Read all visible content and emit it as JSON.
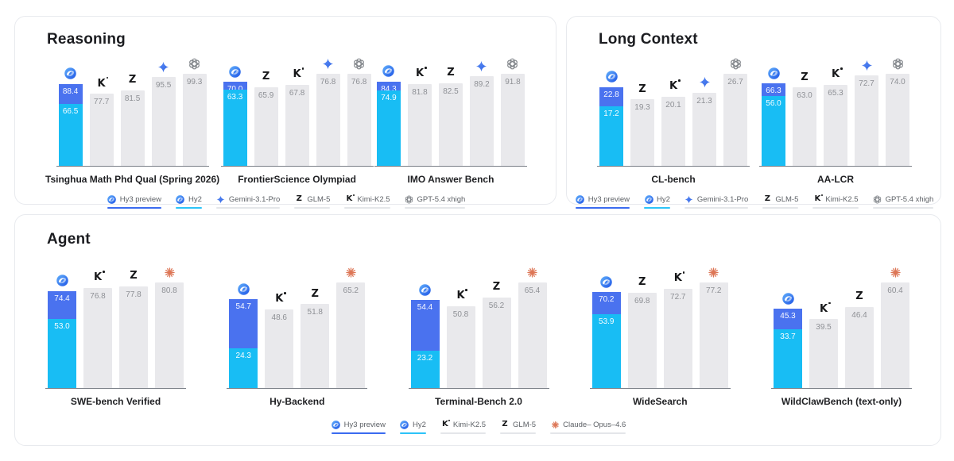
{
  "ui": {
    "models": {
      "hy3": {
        "label": "Hy3 preview",
        "icon": "hunyuan-logo"
      },
      "hy2": {
        "label": "Hy2",
        "icon": "hunyuan-logo"
      },
      "gemini": {
        "label": "Gemini-3.1-Pro",
        "icon": "gemini-star"
      },
      "glm": {
        "label": "GLM-5",
        "icon": "glm-z"
      },
      "kimi": {
        "label": "Kimi-K2.5",
        "icon": "kimi-k"
      },
      "gpt": {
        "label": "GPT-5.4 xhigh",
        "icon": "openai-flower"
      },
      "claude": {
        "label": "Claude– Opus–4.6",
        "icon": "claude-asterisk"
      }
    },
    "colors": {
      "hy3_blue": "#4a72ef",
      "hy2_cyan": "#18bdf4",
      "bar_gray": "#e9e9ec",
      "value_gray_text": "#8e9095",
      "gemini_blue": "#4b7df2",
      "openai_gray": "#7e8287",
      "claude_orange": "#dd7757",
      "underline_hy3": "#3a6bf0",
      "underline_hy2": "#2cc3f8",
      "underline_gray": "#e4e6e9",
      "baseline": "#7a7f87"
    },
    "panels": [
      {
        "title": "Reasoning",
        "charts": [
          0,
          1,
          2
        ],
        "legend": [
          "hy3",
          "hy2",
          "gemini",
          "glm",
          "kimi",
          "gpt"
        ]
      },
      {
        "title": "Long Context",
        "charts": [
          3,
          4
        ],
        "legend": [
          "hy3",
          "hy2",
          "gemini",
          "glm",
          "kimi",
          "gpt"
        ]
      },
      {
        "title": "Agent",
        "charts": [
          5,
          6,
          7,
          8,
          9
        ],
        "legend": [
          "hy3",
          "hy2",
          "kimi",
          "glm",
          "claude"
        ]
      }
    ]
  },
  "chart_data": [
    {
      "type": "bar",
      "panel": "Reasoning",
      "title": "Tsinghua Math Phd Qual (Spring 2026)",
      "bars": [
        {
          "model": "hy",
          "hy3": 88.4,
          "hy3_label": "88.4",
          "hy2": 66.5,
          "hy2_label": "66.5"
        },
        {
          "model": "kimi",
          "value": 77.7,
          "label": "77.7"
        },
        {
          "model": "glm",
          "value": 81.5,
          "label": "81.5"
        },
        {
          "model": "gemini",
          "value": 95.5,
          "label": "95.5"
        },
        {
          "model": "gpt",
          "value": 99.3,
          "label": "99.3"
        }
      ]
    },
    {
      "type": "bar",
      "panel": "Reasoning",
      "title": "FrontierScience Olympiad",
      "bars": [
        {
          "model": "hy",
          "hy3": 70.0,
          "hy3_label": "70.0",
          "hy2": 63.3,
          "hy2_label": "63.3"
        },
        {
          "model": "glm",
          "value": 65.9,
          "label": "65.9"
        },
        {
          "model": "kimi",
          "value": 67.8,
          "label": "67.8"
        },
        {
          "model": "gemini",
          "value": 76.8,
          "label": "76.8"
        },
        {
          "model": "gpt",
          "value": 76.8,
          "label": "76.8"
        }
      ]
    },
    {
      "type": "bar",
      "panel": "Reasoning",
      "title": "IMO Answer Bench",
      "bars": [
        {
          "model": "hy",
          "hy3": 84.3,
          "hy3_label": "84.3",
          "hy2": 74.9,
          "hy2_label": "74.9"
        },
        {
          "model": "kimi",
          "value": 81.8,
          "label": "81.8"
        },
        {
          "model": "glm",
          "value": 82.5,
          "label": "82.5"
        },
        {
          "model": "gemini",
          "value": 89.2,
          "label": "89.2"
        },
        {
          "model": "gpt",
          "value": 91.8,
          "label": "91.8"
        }
      ]
    },
    {
      "type": "bar",
      "panel": "Long Context",
      "title": "CL-bench",
      "bars": [
        {
          "model": "hy",
          "hy3": 22.8,
          "hy3_label": "22.8",
          "hy2": 17.2,
          "hy2_label": "17.2"
        },
        {
          "model": "glm",
          "value": 19.3,
          "label": "19.3"
        },
        {
          "model": "kimi",
          "value": 20.1,
          "label": "20.1"
        },
        {
          "model": "gemini",
          "value": 21.3,
          "label": "21.3"
        },
        {
          "model": "gpt",
          "value": 26.7,
          "label": "26.7"
        }
      ]
    },
    {
      "type": "bar",
      "panel": "Long Context",
      "title": "AA-LCR",
      "bars": [
        {
          "model": "hy",
          "hy3": 66.3,
          "hy3_label": "66.3",
          "hy2": 56.0,
          "hy2_label": "56.0"
        },
        {
          "model": "glm",
          "value": 63.0,
          "label": "63.0"
        },
        {
          "model": "kimi",
          "value": 65.3,
          "label": "65.3"
        },
        {
          "model": "gemini",
          "value": 72.7,
          "label": "72.7"
        },
        {
          "model": "gpt",
          "value": 74.0,
          "label": "74.0"
        }
      ]
    },
    {
      "type": "bar",
      "panel": "Agent",
      "title": "SWE-bench Verified",
      "bars": [
        {
          "model": "hy",
          "hy3": 74.4,
          "hy3_label": "74.4",
          "hy2": 53.0,
          "hy2_label": "53.0"
        },
        {
          "model": "kimi",
          "value": 76.8,
          "label": "76.8"
        },
        {
          "model": "glm",
          "value": 77.8,
          "label": "77.8"
        },
        {
          "model": "claude",
          "value": 80.8,
          "label": "80.8"
        }
      ]
    },
    {
      "type": "bar",
      "panel": "Agent",
      "title": "Hy-Backend",
      "bars": [
        {
          "model": "hy",
          "hy3": 54.7,
          "hy3_label": "54.7",
          "hy2": 24.3,
          "hy2_label": "24.3"
        },
        {
          "model": "kimi",
          "value": 48.6,
          "label": "48.6"
        },
        {
          "model": "glm",
          "value": 51.8,
          "label": "51.8"
        },
        {
          "model": "claude",
          "value": 65.2,
          "label": "65.2"
        }
      ]
    },
    {
      "type": "bar",
      "panel": "Agent",
      "title": "Terminal-Bench 2.0",
      "bars": [
        {
          "model": "hy",
          "hy3": 54.4,
          "hy3_label": "54.4",
          "hy2": 23.2,
          "hy2_label": "23.2"
        },
        {
          "model": "kimi",
          "value": 50.8,
          "label": "50.8"
        },
        {
          "model": "glm",
          "value": 56.2,
          "label": "56.2"
        },
        {
          "model": "claude",
          "value": 65.4,
          "label": "65.4"
        }
      ]
    },
    {
      "type": "bar",
      "panel": "Agent",
      "title": "WideSearch",
      "bars": [
        {
          "model": "hy",
          "hy3": 70.2,
          "hy3_label": "70.2",
          "hy2": 53.9,
          "hy2_label": "53.9"
        },
        {
          "model": "glm",
          "value": 69.8,
          "label": "69.8"
        },
        {
          "model": "kimi",
          "value": 72.7,
          "label": "72.7"
        },
        {
          "model": "claude",
          "value": 77.2,
          "label": "77.2"
        }
      ]
    },
    {
      "type": "bar",
      "panel": "Agent",
      "title": "WildClawBench (text-only)",
      "bars": [
        {
          "model": "hy",
          "hy3": 45.3,
          "hy3_label": "45.3",
          "hy2": 33.7,
          "hy2_label": "33.7"
        },
        {
          "model": "kimi",
          "value": 39.5,
          "label": "39.5"
        },
        {
          "model": "glm",
          "value": 46.4,
          "label": "46.4"
        },
        {
          "model": "claude",
          "value": 60.4,
          "label": "60.4"
        }
      ]
    }
  ]
}
